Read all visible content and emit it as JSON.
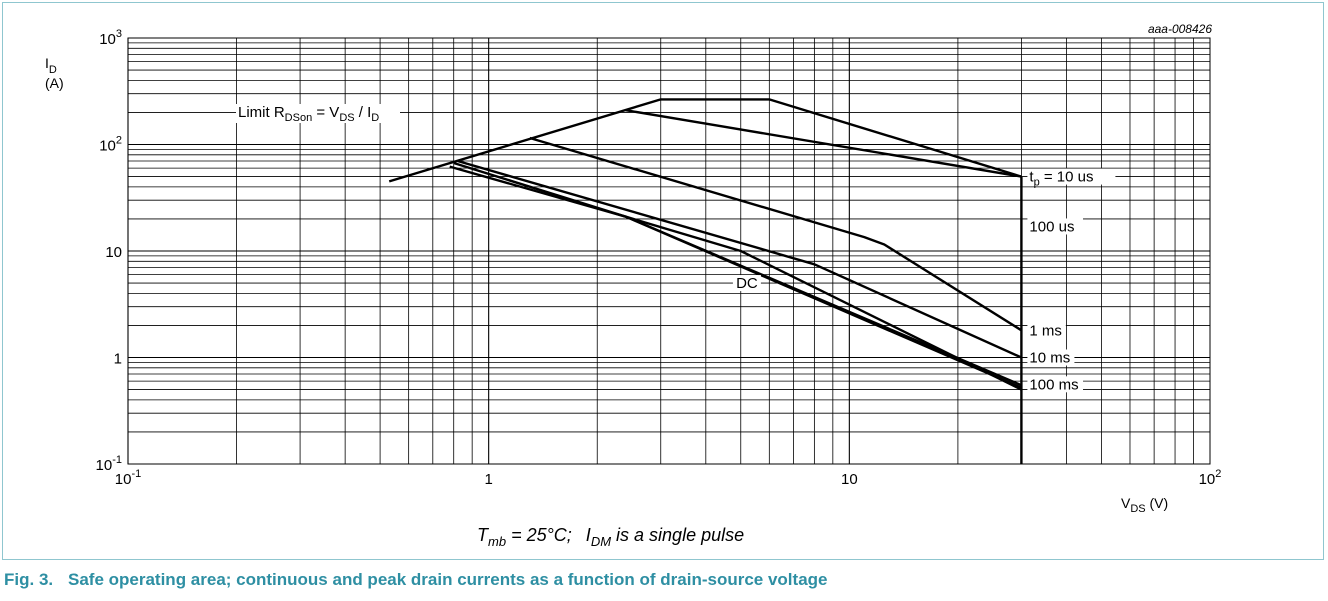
{
  "figure": {
    "id_label": "aaa-008426",
    "conditions": {
      "t_symbol": "T",
      "t_sub": "mb",
      "t_rest": " = 25°C;",
      "i_symbol": "I",
      "i_sub": "DM",
      "i_rest": " is a single pulse"
    },
    "caption_number": "Fig. 3.",
    "caption_text": "Safe operating area; continuous and peak drain currents as a function of drain-source voltage"
  },
  "chart_data": {
    "type": "line",
    "x_scale": "log",
    "y_scale": "log",
    "xlim": [
      0.1,
      100
    ],
    "ylim": [
      0.1,
      1000
    ],
    "grid": true,
    "xlabel": {
      "main": "V",
      "sub": "DS",
      "unit": " (V)"
    },
    "ylabel": {
      "main": "I",
      "sub": "D",
      "unit": "(A)"
    },
    "x_ticks": [
      {
        "value": 0.1,
        "base": "10",
        "exp": "-1"
      },
      {
        "value": 1,
        "base": "1",
        "exp": ""
      },
      {
        "value": 10,
        "base": "10",
        "exp": ""
      },
      {
        "value": 100,
        "base": "10",
        "exp": "2"
      }
    ],
    "y_ticks": [
      {
        "value": 0.1,
        "base": "10",
        "exp": "-1"
      },
      {
        "value": 1,
        "base": "1",
        "exp": ""
      },
      {
        "value": 10,
        "base": "10",
        "exp": ""
      },
      {
        "value": 100,
        "base": "10",
        "exp": "2"
      },
      {
        "value": 1000,
        "base": "10",
        "exp": "3"
      }
    ],
    "limit_label": {
      "prefix": "Limit R",
      "sub1": "DSon",
      "mid1": " = V",
      "sub2": "DS",
      "mid2": " / I",
      "sub3": "D"
    },
    "series": [
      {
        "name": "Limit RDSon",
        "points": [
          [
            0.53,
            45
          ],
          [
            3.0,
            265
          ],
          [
            6.0,
            265
          ],
          [
            30,
            50
          ]
        ]
      },
      {
        "name": "tp = 10 us",
        "label_main": "t",
        "label_sub": "p",
        "label_rest": " = 10 us",
        "label_at": 50,
        "points": [
          [
            2.4,
            210
          ],
          [
            30,
            50
          ]
        ]
      },
      {
        "name": "100 us",
        "label_main": "100 us",
        "label_at": 17,
        "points": [
          [
            1.3,
            115
          ],
          [
            11,
            13.5
          ],
          [
            12.5,
            11.5
          ],
          [
            30,
            1.8
          ]
        ]
      },
      {
        "name": "1 ms",
        "label_main": "1 ms",
        "label_at": 1.8,
        "points": [
          [
            0.82,
            70
          ],
          [
            8.0,
            7.5
          ],
          [
            30,
            1.0
          ]
        ]
      },
      {
        "name": "10 ms",
        "label_main": "10 ms",
        "label_at": 1.0,
        "points": [
          [
            0.8,
            67
          ],
          [
            2.4,
            21
          ],
          [
            5.0,
            10
          ],
          [
            30,
            0.5
          ]
        ]
      },
      {
        "name": "100 ms",
        "label_main": "100 ms",
        "label_at": 0.56,
        "points": [
          [
            0.78,
            62
          ],
          [
            2.4,
            21
          ],
          [
            30,
            0.52
          ]
        ]
      },
      {
        "name": "DC",
        "label_main": "DC",
        "label_point": [
          5.2,
          5.0
        ],
        "points": [
          [
            2.4,
            21
          ],
          [
            30,
            0.55
          ]
        ]
      },
      {
        "name": "VDS limit",
        "points": [
          [
            30,
            0.1
          ],
          [
            30,
            50
          ]
        ]
      }
    ]
  }
}
